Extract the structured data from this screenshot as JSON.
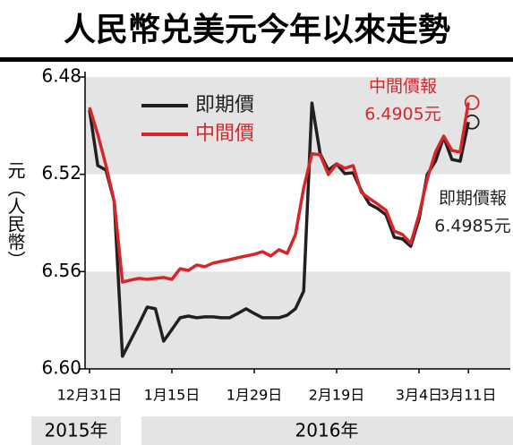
{
  "chart_data": {
    "type": "line",
    "title": "人民幣兑美元今年以來走勢",
    "y_label": "元（人民幣）",
    "categories": [
      "12月31日",
      null,
      null,
      null,
      null,
      null,
      null,
      null,
      null,
      null,
      "1月15日",
      null,
      null,
      null,
      null,
      null,
      null,
      null,
      null,
      null,
      "1月29日",
      null,
      null,
      null,
      null,
      null,
      null,
      null,
      null,
      null,
      "2月19日",
      null,
      null,
      null,
      null,
      null,
      null,
      null,
      null,
      null,
      "3月4日",
      null,
      null,
      null,
      null,
      null,
      "3月11日"
    ],
    "series": [
      {
        "name": "即期價",
        "color": "#231f20",
        "values": [
          6.4936,
          6.5164,
          6.5183,
          6.5312,
          6.5948,
          6.5882,
          6.5816,
          6.5746,
          6.5753,
          6.5886,
          6.5838,
          6.579,
          6.5783,
          6.579,
          6.5786,
          6.5786,
          6.579,
          6.579,
          6.5772,
          6.5753,
          6.5772,
          6.579,
          6.579,
          6.579,
          6.5779,
          6.5753,
          6.568,
          6.4907,
          6.5116,
          6.5183,
          6.5157,
          6.5197,
          6.5194,
          6.5267,
          6.5323,
          6.5341,
          6.5367,
          6.5459,
          6.5466,
          6.5496,
          6.5385,
          6.5201,
          6.5146,
          6.5047,
          6.5139,
          6.5146,
          6.4985
        ]
      },
      {
        "name": "中間價",
        "color": "#d7262b",
        "values": [
          6.4925,
          6.5036,
          6.5164,
          6.5312,
          6.5643,
          6.5635,
          6.5628,
          6.5632,
          6.5628,
          6.5624,
          6.5632,
          6.5588,
          6.5595,
          6.5573,
          6.558,
          6.5565,
          6.5558,
          6.5551,
          6.5543,
          6.5536,
          6.5529,
          6.5518,
          6.5536,
          6.551,
          6.5525,
          6.5448,
          6.5256,
          6.5116,
          6.512,
          6.5201,
          6.5157,
          6.5175,
          6.5164,
          6.5275,
          6.53,
          6.5323,
          6.5348,
          6.5433,
          6.5448,
          6.5484,
          6.5367,
          6.522,
          6.5109,
          6.5043,
          6.5102,
          6.5109,
          6.4905
        ]
      }
    ],
    "ylim": [
      6.6,
      6.48
    ],
    "yticks": [
      6.48,
      6.52,
      6.56,
      {
        "value": 6.6,
        "label": "6.60"
      }
    ],
    "annotations": [
      {
        "lines": [
          "中間價報",
          "6.4905元"
        ],
        "color": "#d7262b"
      },
      {
        "lines": [
          "即期價報",
          "6.4985元"
        ],
        "color": "#231f20"
      }
    ],
    "year_labels": [
      "2015年",
      "2016年"
    ]
  }
}
